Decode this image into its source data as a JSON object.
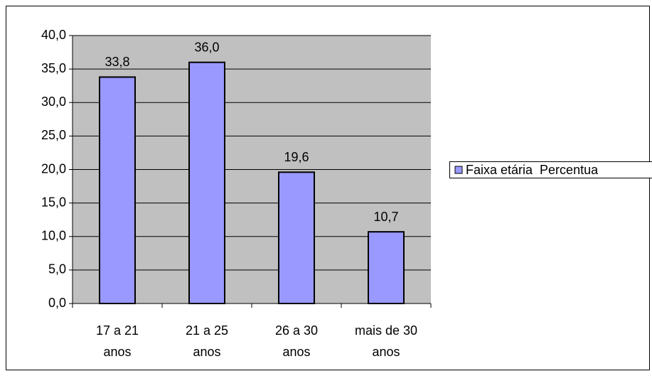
{
  "chart_data": {
    "type": "bar",
    "categories": [
      "17 a 21 anos",
      "21 a 25 anos",
      "26 a 30 anos",
      "mais de 30 anos"
    ],
    "series": [
      {
        "name": "Faixa etária  Percentua",
        "color": "#9999ff",
        "values": [
          33.8,
          36.0,
          19.6,
          10.7
        ],
        "value_labels": [
          "33,8",
          "36,0",
          "19,6",
          "10,7"
        ]
      }
    ],
    "ylim": [
      0,
      40
    ],
    "yticks": [
      {
        "value": 0,
        "label": "0,0"
      },
      {
        "value": 5,
        "label": "5,0"
      },
      {
        "value": 10,
        "label": "10,0"
      },
      {
        "value": 15,
        "label": "15,0"
      },
      {
        "value": 20,
        "label": "20,0"
      },
      {
        "value": 25,
        "label": "25,0"
      },
      {
        "value": 30,
        "label": "30,0"
      },
      {
        "value": 35,
        "label": "35,0"
      },
      {
        "value": 40,
        "label": "40,0"
      }
    ],
    "grid": true,
    "legend": "right",
    "plot_background": "#c0c0c0"
  }
}
